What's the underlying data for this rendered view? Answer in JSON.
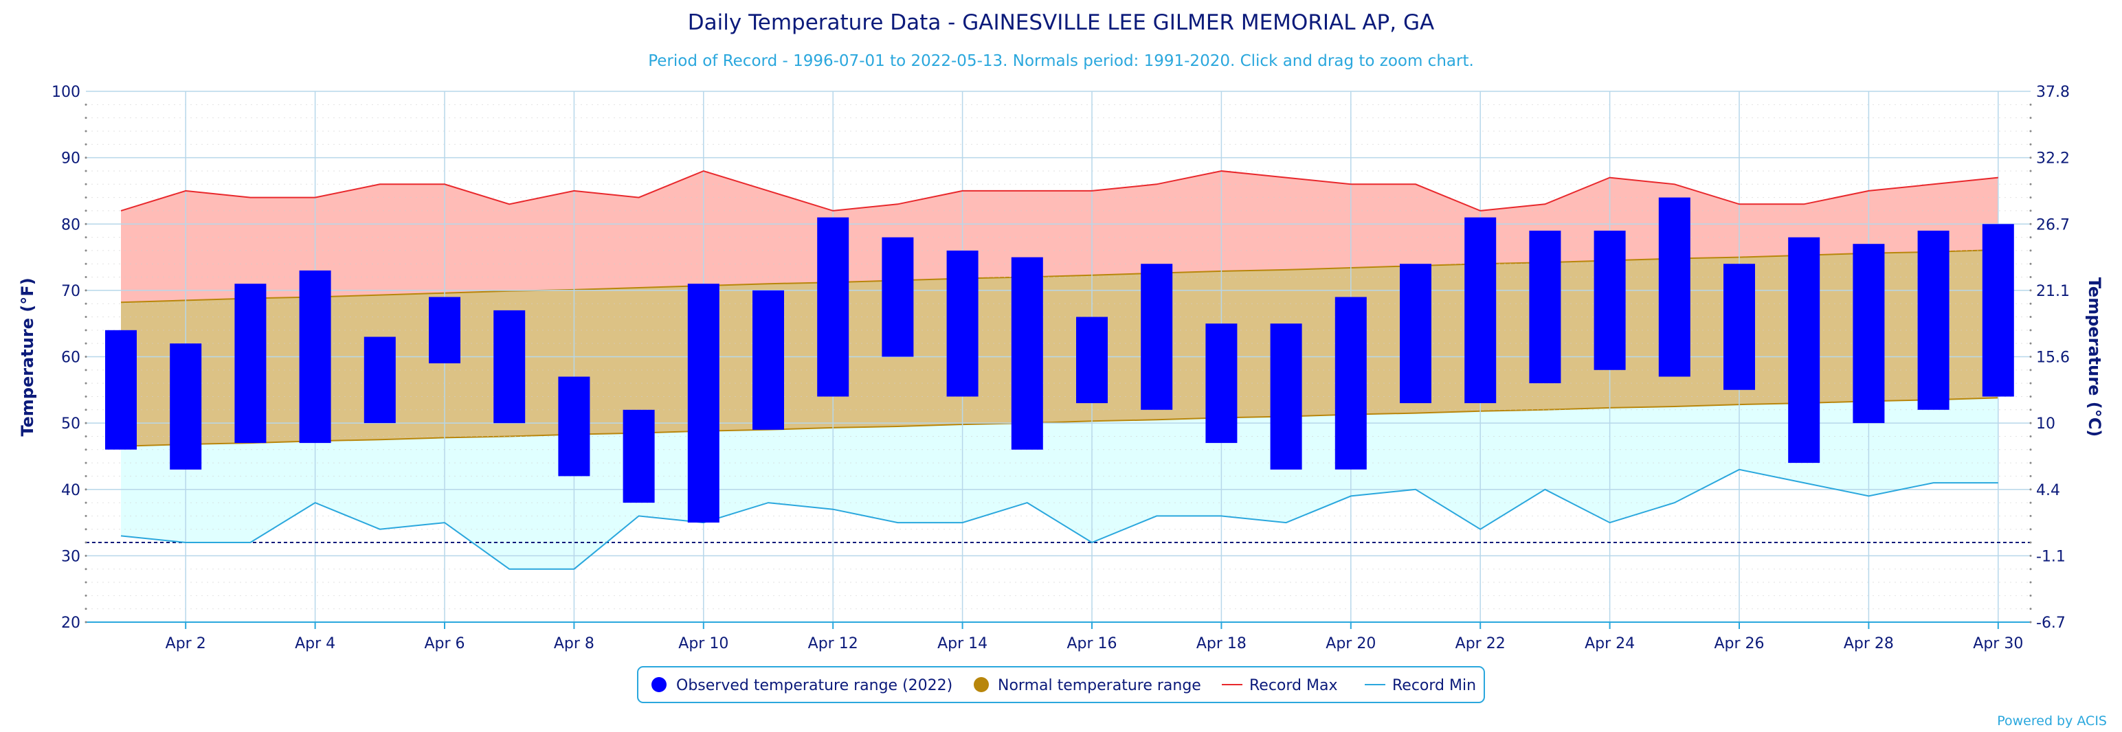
{
  "chart_data": {
    "type": "bar",
    "title": "Daily Temperature Data - GAINESVILLE LEE GILMER MEMORIAL AP, GA",
    "subtitle": "Period of Record - 1996-07-01 to 2022-05-13. Normals period: 1991-2020. Click and drag to zoom chart.",
    "ylabel": "Temperature (°F)",
    "ylabel_right": "Temperature (°C)",
    "ylim": [
      20,
      100
    ],
    "y_ticks": [
      "20",
      "30",
      "40",
      "50",
      "60",
      "70",
      "80",
      "90",
      "100"
    ],
    "y_ticks_right": [
      "-6.7",
      "-1.1",
      "4.4",
      "10",
      "15.6",
      "21.1",
      "26.7",
      "32.2",
      "37.8"
    ],
    "freezing_line": 32,
    "x_days": [
      1,
      2,
      3,
      4,
      5,
      6,
      7,
      8,
      9,
      10,
      11,
      12,
      13,
      14,
      15,
      16,
      17,
      18,
      19,
      20,
      21,
      22,
      23,
      24,
      25,
      26,
      27,
      28,
      29,
      30
    ],
    "x_tick_labels": [
      "Apr 2",
      "Apr 4",
      "Apr 6",
      "Apr 8",
      "Apr 10",
      "Apr 12",
      "Apr 14",
      "Apr 16",
      "Apr 18",
      "Apr 20",
      "Apr 22",
      "Apr 24",
      "Apr 26",
      "Apr 28",
      "Apr 30"
    ],
    "x_tick_days": [
      2,
      4,
      6,
      8,
      10,
      12,
      14,
      16,
      18,
      20,
      22,
      24,
      26,
      28,
      30
    ],
    "observed_low": [
      46,
      43,
      47,
      47,
      50,
      59,
      50,
      42,
      38,
      35,
      49,
      54,
      60,
      54,
      46,
      53,
      52,
      47,
      43,
      43,
      53,
      53,
      56,
      58,
      57,
      55,
      44,
      50,
      52,
      54
    ],
    "observed_high": [
      64,
      62,
      71,
      73,
      63,
      69,
      67,
      57,
      52,
      71,
      70,
      81,
      78,
      76,
      75,
      66,
      74,
      65,
      65,
      69,
      74,
      81,
      79,
      79,
      84,
      74,
      78,
      77,
      79,
      80
    ],
    "normal_low": [
      46.5,
      46.8,
      47.0,
      47.3,
      47.5,
      47.8,
      48.0,
      48.3,
      48.5,
      48.8,
      49.0,
      49.3,
      49.5,
      49.8,
      50.0,
      50.3,
      50.5,
      50.8,
      51.0,
      51.3,
      51.5,
      51.8,
      52.0,
      52.3,
      52.5,
      52.8,
      53.0,
      53.3,
      53.5,
      53.8
    ],
    "normal_high": [
      68.2,
      68.5,
      68.8,
      69.0,
      69.3,
      69.6,
      69.9,
      70.1,
      70.4,
      70.7,
      71.0,
      71.2,
      71.5,
      71.8,
      72.0,
      72.3,
      72.6,
      72.9,
      73.1,
      73.4,
      73.7,
      74.0,
      74.2,
      74.5,
      74.8,
      75.0,
      75.3,
      75.6,
      75.8,
      76.1
    ],
    "record_max": [
      82,
      85,
      84,
      84,
      86,
      86,
      83,
      85,
      84,
      88,
      85,
      82,
      83,
      85,
      85,
      85,
      86,
      88,
      87,
      86,
      86,
      82,
      83,
      87,
      86,
      83,
      83,
      85,
      86,
      87
    ],
    "record_min": [
      33,
      32,
      32,
      38,
      34,
      35,
      28,
      28,
      36,
      35,
      38,
      37,
      35,
      35,
      38,
      32,
      36,
      36,
      35,
      39,
      40,
      34,
      40,
      35,
      38,
      43,
      41,
      39,
      41,
      41
    ],
    "legend": [
      {
        "label": "Observed temperature range (2022)",
        "color": "#0000ff",
        "marker": "circle"
      },
      {
        "label": "Normal temperature range",
        "color": "#b8860b",
        "marker": "circle"
      },
      {
        "label": "Record Max",
        "color": "#e8282c",
        "marker": "line"
      },
      {
        "label": "Record Min",
        "color": "#2aa7dd",
        "marker": "line"
      }
    ],
    "legend_position": "bottom-center",
    "grid": true
  },
  "credit": "Powered by ACIS",
  "colors": {
    "observed": "#0000ff",
    "normal_fill": "#dcc285",
    "normal_line": "#b8860b",
    "record_max_fill": "#ffbcb7",
    "record_max_line": "#e8282c",
    "record_min_fill": "#e0ffff",
    "record_min_line": "#2aa7dd",
    "grid": "#b7d7ea",
    "text": "#0b1a7a",
    "freezing": "#0b1a7a"
  }
}
